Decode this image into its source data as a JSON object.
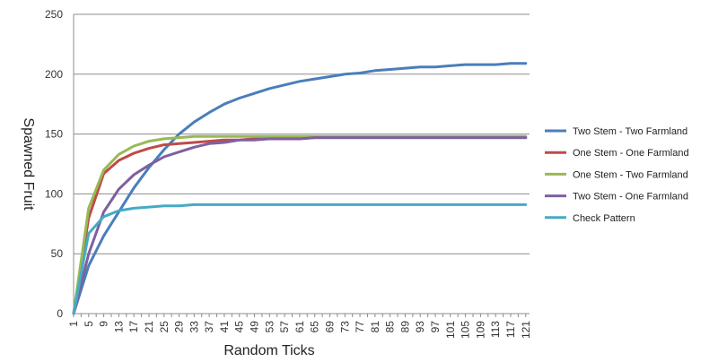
{
  "chart_data": {
    "type": "line",
    "title": "",
    "xlabel": "Random Ticks",
    "ylabel": "Spawned Fruit",
    "ylim": [
      0,
      250
    ],
    "yticks": [
      0,
      50,
      100,
      150,
      200,
      250
    ],
    "xticks": [
      1,
      5,
      9,
      13,
      17,
      21,
      25,
      29,
      33,
      37,
      41,
      45,
      49,
      53,
      57,
      61,
      65,
      69,
      73,
      77,
      81,
      85,
      89,
      93,
      97,
      101,
      105,
      109,
      113,
      117,
      121
    ],
    "grid": "horizontal",
    "legend_position": "right",
    "x": [
      1,
      5,
      9,
      13,
      17,
      21,
      25,
      29,
      33,
      37,
      41,
      45,
      49,
      53,
      57,
      61,
      65,
      69,
      73,
      77,
      81,
      85,
      89,
      93,
      97,
      101,
      105,
      109,
      113,
      117,
      121
    ],
    "series": [
      {
        "name": "Two Stem - Two Farmland",
        "color": "#4a7ebb",
        "values": [
          0,
          40,
          65,
          85,
          105,
          122,
          137,
          150,
          160,
          168,
          175,
          180,
          184,
          188,
          191,
          194,
          196,
          198,
          200,
          201,
          203,
          204,
          205,
          206,
          206,
          207,
          208,
          208,
          208,
          209,
          209
        ]
      },
      {
        "name": "One Stem - One Farmland",
        "color": "#be4b48",
        "values": [
          0,
          80,
          117,
          128,
          134,
          138,
          141,
          142,
          143,
          144,
          145,
          145,
          146,
          146,
          146,
          146,
          147,
          147,
          147,
          147,
          147,
          147,
          147,
          147,
          147,
          147,
          147,
          147,
          147,
          147,
          147
        ]
      },
      {
        "name": "One Stem - Two Farmland",
        "color": "#98b954",
        "values": [
          0,
          88,
          120,
          133,
          140,
          144,
          146,
          147,
          148,
          148,
          148,
          148,
          148,
          148,
          148,
          148,
          148,
          148,
          148,
          148,
          148,
          148,
          148,
          148,
          148,
          148,
          148,
          148,
          148,
          148,
          148
        ]
      },
      {
        "name": "Two Stem - One Farmland",
        "color": "#7d60a0",
        "values": [
          0,
          50,
          85,
          104,
          116,
          124,
          131,
          135,
          139,
          142,
          143,
          145,
          145,
          146,
          146,
          146,
          147,
          147,
          147,
          147,
          147,
          147,
          147,
          147,
          147,
          147,
          147,
          147,
          147,
          147,
          147
        ]
      },
      {
        "name": "Check Pattern",
        "color": "#46aac5",
        "values": [
          0,
          67,
          81,
          86,
          88,
          89,
          90,
          90,
          91,
          91,
          91,
          91,
          91,
          91,
          91,
          91,
          91,
          91,
          91,
          91,
          91,
          91,
          91,
          91,
          91,
          91,
          91,
          91,
          91,
          91,
          91
        ]
      }
    ]
  }
}
